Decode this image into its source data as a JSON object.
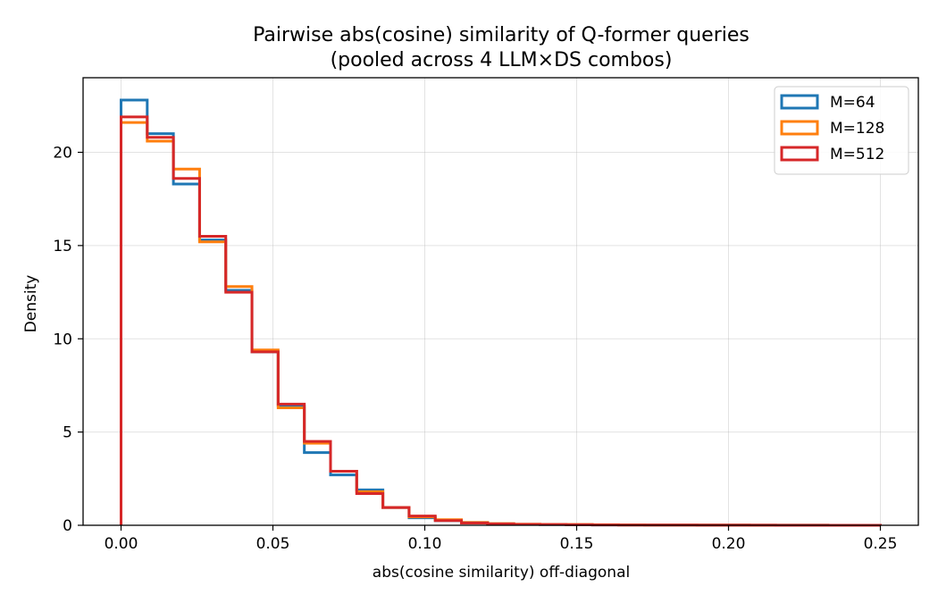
{
  "chart_data": {
    "type": "histogram",
    "histtype": "step",
    "title": [
      "Pairwise abs(cosine) similarity of Q-former queries",
      "(pooled across 4 LLM×DS combos)"
    ],
    "xlabel": "abs(cosine similarity)  off-diagonal",
    "ylabel": "Density",
    "xlim": [
      -0.0125,
      0.2625
    ],
    "ylim": [
      0,
      24
    ],
    "xticks": [
      0.0,
      0.05,
      0.1,
      0.15,
      0.2,
      0.25
    ],
    "xtick_labels": [
      "0.00",
      "0.05",
      "0.10",
      "0.15",
      "0.20",
      "0.25"
    ],
    "yticks": [
      0,
      5,
      10,
      15,
      20
    ],
    "ytick_labels": [
      "0",
      "5",
      "10",
      "15",
      "20"
    ],
    "grid": true,
    "legend_position": "top-right",
    "bin_edges": [
      0.0,
      0.00862,
      0.01724,
      0.02586,
      0.03448,
      0.0431,
      0.05172,
      0.06034,
      0.06897,
      0.07759,
      0.08621,
      0.09483,
      0.10345,
      0.11207,
      0.12069,
      0.12931,
      0.13793,
      0.14655,
      0.15517,
      0.16379,
      0.17241,
      0.18103,
      0.18966,
      0.19828,
      0.2069,
      0.21552,
      0.22414,
      0.23276,
      0.24138,
      0.25
    ],
    "series": [
      {
        "name": "M=64",
        "color": "#1f77b4",
        "values": [
          22.8,
          21.0,
          18.3,
          15.3,
          12.6,
          9.3,
          6.4,
          3.9,
          2.7,
          1.9,
          0.95,
          0.4,
          0.25,
          0.15,
          0.08,
          0.05,
          0.04,
          0.03,
          0.02,
          0.02,
          0.01,
          0.01,
          0.01,
          0.01,
          0.005,
          0.005,
          0.003,
          0.002,
          0.001
        ]
      },
      {
        "name": "M=128",
        "color": "#ff7f0e",
        "values": [
          21.6,
          20.6,
          19.1,
          15.2,
          12.8,
          9.4,
          6.3,
          4.4,
          2.9,
          1.8,
          0.95,
          0.45,
          0.3,
          0.15,
          0.09,
          0.06,
          0.05,
          0.04,
          0.03,
          0.02,
          0.01,
          0.01,
          0.01,
          0.01,
          0.005,
          0.005,
          0.003,
          0.002,
          0.001
        ]
      },
      {
        "name": "M=512",
        "color": "#d62728",
        "values": [
          21.9,
          20.8,
          18.6,
          15.5,
          12.5,
          9.3,
          6.5,
          4.5,
          2.9,
          1.7,
          0.95,
          0.5,
          0.25,
          0.12,
          0.07,
          0.05,
          0.04,
          0.03,
          0.02,
          0.01,
          0.01,
          0.01,
          0.005,
          0.005,
          0.003,
          0.002,
          0.001,
          0.001,
          0.001
        ]
      }
    ]
  }
}
